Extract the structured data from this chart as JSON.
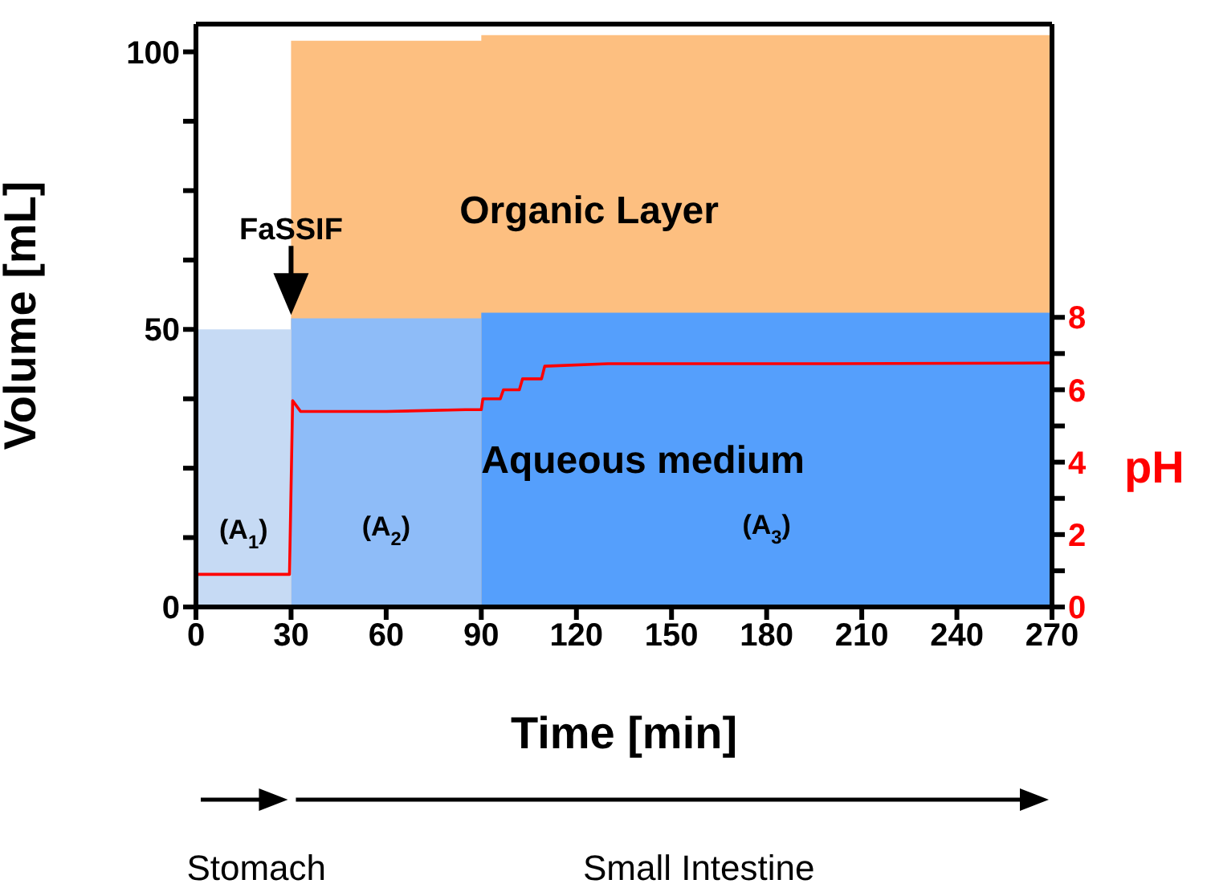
{
  "chart_data": {
    "type": "area",
    "xlabel": "Time [min]",
    "ylabel": "Volume [mL]",
    "y2label": "pH",
    "xlim": [
      0,
      270
    ],
    "xticks": [
      0,
      30,
      60,
      90,
      120,
      150,
      180,
      210,
      240,
      270
    ],
    "ylim": [
      0,
      105
    ],
    "yticks": [
      0,
      {
        "value": 12.5,
        "label": null
      },
      {
        "value": 25,
        "label": null
      },
      {
        "value": 37.5,
        "label": null
      },
      50,
      {
        "value": 62.5,
        "label": null
      },
      {
        "value": 75,
        "label": null
      },
      {
        "value": 87.5,
        "label": null
      },
      100
    ],
    "y2lim": [
      0,
      16.1
    ],
    "y2ticks": [
      0,
      {
        "value": 1,
        "label": null
      },
      2,
      {
        "value": 3,
        "label": null
      },
      4,
      {
        "value": 5,
        "label": null
      },
      6,
      {
        "value": 7,
        "label": null
      },
      8
    ],
    "series": [
      {
        "color": "#fdbf80",
        "x": [
          30,
          90,
          90,
          270
        ],
        "values": [
          102,
          102,
          103,
          103
        ]
      },
      {
        "name": "(A$_{1}$)",
        "color": "#c6daf4",
        "x": [
          0,
          30
        ],
        "values": [
          50,
          50
        ]
      },
      {
        "name": "(A$_{2}$)",
        "color": "#8ebcf8",
        "x": [
          30,
          90
        ],
        "values": [
          52,
          52
        ]
      },
      {
        "name": "(A$_{3}$)",
        "color": "#559ffc",
        "x": [
          90,
          270
        ],
        "values": [
          53,
          53
        ]
      },
      {
        "type": "line",
        "axis": "y2",
        "color": "#ff0000",
        "x": [
          0,
          29.5,
          30.5,
          33,
          60,
          85,
          90,
          90.5,
          96,
          97,
          102,
          103,
          109,
          110,
          130,
          200,
          270
        ],
        "values": [
          0.9,
          0.9,
          5.7,
          5.4,
          5.4,
          5.45,
          5.45,
          5.75,
          5.75,
          6.0,
          6.0,
          6.3,
          6.3,
          6.65,
          6.72,
          6.72,
          6.74
        ]
      }
    ],
    "annotations": [
      "Organic Layer",
      "Aqueous medium",
      {
        "text": "FaSSIF",
        "x": 30,
        "y": 50
      },
      "Stomach",
      "Small Intestine"
    ],
    "legend": false,
    "grid": false,
    "marker": "none",
    "line_style": "solid"
  }
}
